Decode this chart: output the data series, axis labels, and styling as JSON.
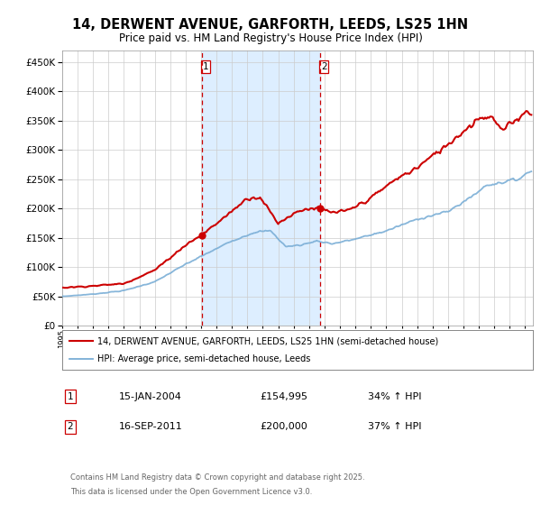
{
  "title_line1": "14, DERWENT AVENUE, GARFORTH, LEEDS, LS25 1HN",
  "title_line2": "Price paid vs. HM Land Registry's House Price Index (HPI)",
  "red_label": "14, DERWENT AVENUE, GARFORTH, LEEDS, LS25 1HN (semi-detached house)",
  "blue_label": "HPI: Average price, semi-detached house, Leeds",
  "transaction1_date": "15-JAN-2004",
  "transaction1_price": 154995,
  "transaction1_pricefmt": "£154,995",
  "transaction1_hpi": "34% ↑ HPI",
  "transaction2_date": "16-SEP-2011",
  "transaction2_price": 200000,
  "transaction2_pricefmt": "£200,000",
  "transaction2_hpi": "37% ↑ HPI",
  "vline1_year": 2004.04,
  "vline2_year": 2011.71,
  "footer_line1": "Contains HM Land Registry data © Crown copyright and database right 2025.",
  "footer_line2": "This data is licensed under the Open Government Licence v3.0.",
  "background_color": "#ffffff",
  "shaded_region_color": "#ddeeff",
  "grid_color": "#cccccc",
  "red_color": "#cc0000",
  "blue_color": "#7aaed6",
  "ylim_max": 470000,
  "xlim_min": 1995.0,
  "xlim_max": 2025.5
}
